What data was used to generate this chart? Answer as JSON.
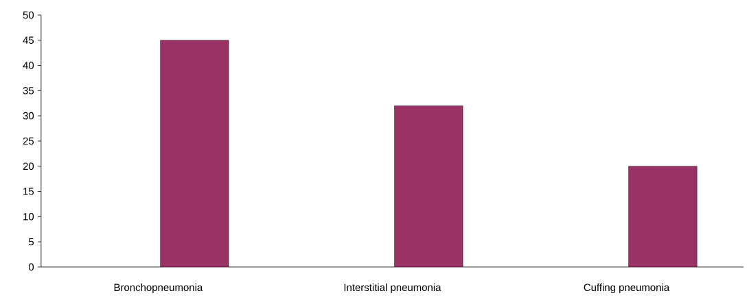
{
  "chart_data": {
    "type": "bar",
    "categories": [
      "Bronchopneumonia",
      "Interstitial pneumonia",
      "Cuffing pneumonia"
    ],
    "values": [
      45,
      32,
      20
    ],
    "color": "#993366",
    "ylim": [
      0,
      50
    ],
    "yticks": [
      0,
      5,
      10,
      15,
      20,
      25,
      30,
      35,
      40,
      45,
      50
    ]
  }
}
